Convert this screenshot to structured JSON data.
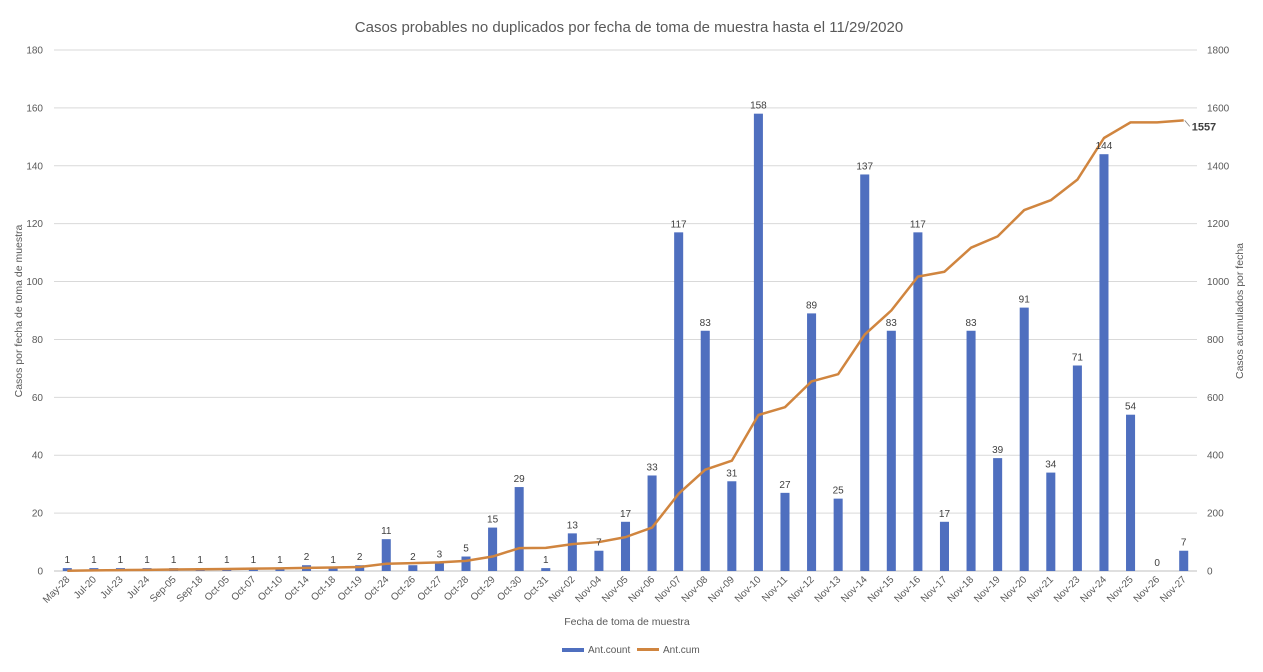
{
  "chart_data": {
    "type": "bar+line",
    "title": "Casos probables no duplicados por fecha de toma de muestra hasta el 11/29/2020",
    "xlabel": "Fecha de toma de muestra",
    "ylabel": "Casos por fecha de toma de muestra",
    "y2label": "Casos acumulados por fecha",
    "ylim": [
      0,
      180
    ],
    "y2lim": [
      0,
      1800
    ],
    "yticks": [
      "0",
      "20",
      "40",
      "60",
      "80",
      "100",
      "120",
      "140",
      "160",
      "180"
    ],
    "y2ticks": [
      "0",
      "200",
      "400",
      "600",
      "800",
      "1000",
      "1200",
      "1400",
      "1600",
      "1800"
    ],
    "grid": true,
    "legend_position": "bottom",
    "categories": [
      "May-28",
      "Jul-20",
      "Jul-23",
      "Jul-24",
      "Sep-05",
      "Sep-18",
      "Oct-05",
      "Oct-07",
      "Oct-10",
      "Oct-14",
      "Oct-18",
      "Oct-19",
      "Oct-24",
      "Oct-26",
      "Oct-27",
      "Oct-28",
      "Oct-29",
      "Oct-30",
      "Oct-31",
      "Nov-02",
      "Nov-04",
      "Nov-05",
      "Nov-06",
      "Nov-07",
      "Nov-08",
      "Nov-09",
      "Nov-10",
      "Nov-11",
      "Nov-12",
      "Nov-13",
      "Nov-14",
      "Nov-15",
      "Nov-16",
      "Nov-17",
      "Nov-18",
      "Nov-19",
      "Nov-20",
      "Nov-21",
      "Nov-23",
      "Nov-24",
      "Nov-25",
      "Nov-26",
      "Nov-27"
    ],
    "series": [
      {
        "name": "Ant.count",
        "type": "bar",
        "axis": "left",
        "color": "#4f6fbf",
        "values": [
          1,
          1,
          1,
          1,
          1,
          1,
          1,
          1,
          1,
          2,
          1,
          2,
          11,
          2,
          3,
          5,
          15,
          29,
          1,
          13,
          7,
          17,
          33,
          117,
          83,
          31,
          158,
          27,
          89,
          25,
          137,
          83,
          117,
          17,
          83,
          39,
          91,
          34,
          71,
          144,
          54,
          0,
          7
        ],
        "labels": [
          "1",
          "1",
          "1",
          "1",
          "1",
          "1",
          "1",
          "1",
          "1",
          "2",
          "1",
          "2",
          "11",
          "2",
          "3",
          "5",
          "15",
          "29",
          "1",
          "13",
          "7",
          "17",
          "33",
          "117",
          "83",
          "31",
          "158",
          "27",
          "89",
          "25",
          "137",
          "83",
          "117",
          "17",
          "83",
          "39",
          "91",
          "34",
          "71",
          "144",
          "54",
          "0",
          "7"
        ]
      },
      {
        "name": "Ant.cum",
        "type": "line",
        "axis": "right",
        "color": "#d0853f",
        "values": [
          1,
          2,
          3,
          4,
          5,
          6,
          7,
          8,
          9,
          11,
          12,
          14,
          25,
          27,
          30,
          35,
          50,
          79,
          80,
          93,
          100,
          117,
          150,
          267,
          350,
          381,
          539,
          566,
          655,
          680,
          817,
          900,
          1017,
          1034,
          1117,
          1156,
          1247,
          1281,
          1352,
          1496,
          1550,
          1550,
          1557
        ],
        "end_label": "1557"
      }
    ]
  }
}
